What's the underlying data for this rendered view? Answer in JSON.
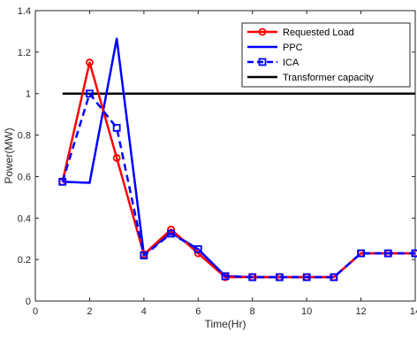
{
  "chart_data": {
    "type": "line",
    "xlabel": "Time(Hr)",
    "ylabel": "Power(MW)",
    "xlim": [
      0,
      14
    ],
    "ylim": [
      0,
      1.4
    ],
    "xticks": [
      0,
      2,
      4,
      6,
      8,
      10,
      12,
      14
    ],
    "yticks": [
      0,
      0.2,
      0.4,
      0.6,
      0.8,
      1,
      1.2,
      1.4
    ],
    "legend_position": "top-right",
    "grid": false,
    "series": [
      {
        "name": "Requested Load",
        "color": "#ff0000",
        "line_style": "solid",
        "marker": "circle",
        "x": [
          1,
          2,
          3,
          4,
          5,
          6,
          7,
          8,
          9,
          10,
          11,
          12,
          13,
          14
        ],
        "y": [
          0.575,
          1.15,
          0.69,
          0.225,
          0.345,
          0.23,
          0.115,
          0.115,
          0.115,
          0.115,
          0.115,
          0.23,
          0.23,
          0.23
        ]
      },
      {
        "name": "PPC",
        "color": "#0000ff",
        "line_style": "solid",
        "marker": "none",
        "x": [
          1,
          2,
          3,
          4,
          5,
          6,
          7,
          8,
          9,
          10,
          11,
          12,
          13,
          14
        ],
        "y": [
          0.575,
          0.57,
          1.265,
          0.225,
          0.33,
          0.25,
          0.12,
          0.115,
          0.115,
          0.115,
          0.115,
          0.23,
          0.23,
          0.23
        ]
      },
      {
        "name": "ICA",
        "color": "#0000ff",
        "line_style": "dashed",
        "marker": "square",
        "x": [
          1,
          2,
          3,
          4,
          5,
          6,
          7,
          8,
          9,
          10,
          11,
          12,
          13,
          14
        ],
        "y": [
          0.575,
          1.0,
          0.835,
          0.22,
          0.325,
          0.25,
          0.12,
          0.115,
          0.115,
          0.115,
          0.115,
          0.23,
          0.23,
          0.23
        ]
      },
      {
        "name": "Transformer capacity",
        "color": "#000000",
        "line_style": "solid",
        "marker": "none",
        "x": [
          1,
          14
        ],
        "y": [
          1.0,
          1.0
        ]
      }
    ]
  }
}
